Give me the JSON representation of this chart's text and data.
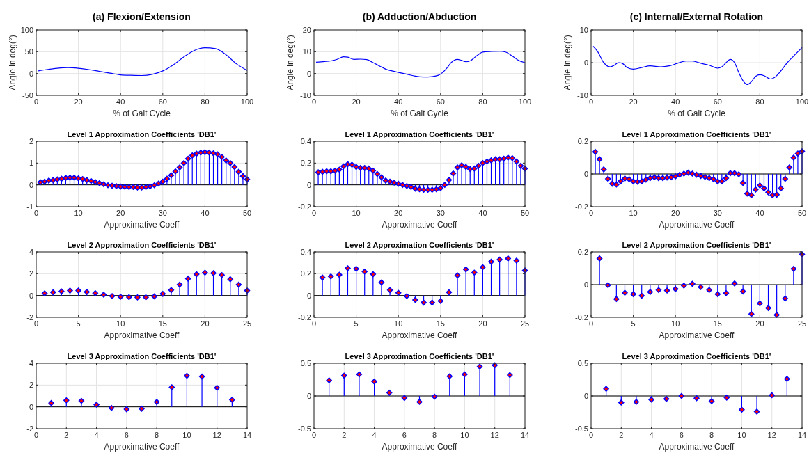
{
  "chart_data": [
    {
      "type": "line",
      "title": "(a) Flexion/Extension",
      "xlabel": "% of Gait Cycle",
      "ylabel": "Angle in deg(°)",
      "color": "#0000ff",
      "grid": true,
      "xlim": [
        0,
        100
      ],
      "ylim": [
        -50,
        100
      ],
      "xticks": [
        0,
        20,
        40,
        60,
        80,
        100
      ],
      "yticks": [
        -50,
        0,
        50,
        100
      ],
      "x": [
        1,
        5,
        10,
        15,
        20,
        25,
        30,
        35,
        40,
        45,
        50,
        55,
        60,
        65,
        70,
        75,
        80,
        85,
        90,
        95,
        100
      ],
      "values": [
        6,
        9,
        12,
        13.5,
        12,
        9,
        5,
        1,
        -3,
        -4,
        -4.5,
        -2,
        6,
        20,
        38,
        53,
        59,
        57,
        43,
        22,
        7
      ]
    },
    {
      "type": "line",
      "title": "(b) Adduction/Abduction",
      "xlabel": "% of Gait Cycle",
      "ylabel": "Angle in deg(°)",
      "color": "#0000ff",
      "grid": true,
      "xlim": [
        0,
        100
      ],
      "ylim": [
        -10,
        20
      ],
      "xticks": [
        0,
        20,
        40,
        60,
        80,
        100
      ],
      "yticks": [
        -10,
        0,
        10,
        20
      ],
      "x": [
        1,
        5,
        8,
        11,
        14,
        16,
        19,
        22,
        25,
        28,
        31,
        34,
        37,
        40,
        44,
        48,
        52,
        56,
        59,
        61,
        63,
        65,
        68,
        70,
        72,
        74,
        77,
        80,
        84,
        88,
        91,
        94,
        97,
        100
      ],
      "values": [
        5.2,
        5.5,
        5.8,
        6.5,
        7.7,
        7.5,
        6.5,
        6.6,
        6.4,
        5,
        3.5,
        2,
        1.2,
        0.5,
        -0.3,
        -1.2,
        -1.6,
        -1.4,
        -0.8,
        0.5,
        2.5,
        5,
        6.5,
        6,
        5.4,
        5.8,
        8,
        9.8,
        10.1,
        10.2,
        9.8,
        8,
        6,
        5
      ]
    },
    {
      "type": "line",
      "title": "(c) Internal/External Rotation",
      "xlabel": "% of Gait Cycle",
      "ylabel": "Angle in deg(°)",
      "color": "#0000ff",
      "grid": true,
      "xlim": [
        0,
        100
      ],
      "ylim": [
        -10,
        10
      ],
      "xticks": [
        0,
        20,
        40,
        60,
        80,
        100
      ],
      "yticks": [
        -10,
        0,
        10
      ],
      "x": [
        1,
        3,
        6,
        9,
        11,
        13,
        15,
        17,
        20,
        24,
        28,
        33,
        37,
        41,
        45,
        48,
        52,
        56,
        60,
        62,
        64,
        66,
        68,
        70,
        72,
        74,
        76,
        78,
        80,
        82,
        85,
        87,
        90,
        93,
        96,
        100
      ],
      "values": [
        5,
        3.5,
        0,
        -1.3,
        -0.8,
        0,
        -0.3,
        -1.5,
        -2,
        -1.5,
        -1,
        -1.3,
        -1,
        -0.2,
        0.5,
        0.5,
        -0.2,
        -0.8,
        -1.7,
        -1.3,
        0,
        1,
        0,
        -3,
        -5.5,
        -6.7,
        -5.8,
        -4.2,
        -3.7,
        -4,
        -5,
        -4.5,
        -2.5,
        0,
        2,
        4.6
      ]
    },
    {
      "type": "lollipop",
      "title": "Level 1 Approximation Coefficients 'DB1'",
      "xlabel": "Approximative Coeff",
      "color": "#0000ff",
      "marker": "diamond",
      "grid": true,
      "xlim": [
        0,
        50
      ],
      "ylim": [
        -1,
        2
      ],
      "xticks": [
        0,
        10,
        20,
        30,
        40,
        50
      ],
      "yticks": [
        -1,
        0,
        1,
        2
      ],
      "x": [
        1,
        2,
        3,
        4,
        5,
        6,
        7,
        8,
        9,
        10,
        11,
        12,
        13,
        14,
        15,
        16,
        17,
        18,
        19,
        20,
        21,
        22,
        23,
        24,
        25,
        26,
        27,
        28,
        29,
        30,
        31,
        32,
        33,
        34,
        35,
        36,
        37,
        38,
        39,
        40,
        41,
        42,
        43,
        44,
        45,
        46,
        47,
        48,
        49,
        50
      ],
      "values": [
        0.12,
        0.15,
        0.2,
        0.22,
        0.25,
        0.28,
        0.32,
        0.33,
        0.33,
        0.3,
        0.27,
        0.22,
        0.18,
        0.13,
        0.08,
        0.03,
        -0.02,
        -0.04,
        -0.06,
        -0.08,
        -0.09,
        -0.1,
        -0.1,
        -0.12,
        -0.12,
        -0.1,
        -0.07,
        -0.02,
        0.06,
        0.15,
        0.28,
        0.44,
        0.62,
        0.8,
        1.0,
        1.2,
        1.35,
        1.43,
        1.48,
        1.5,
        1.48,
        1.45,
        1.4,
        1.28,
        1.12,
        1.0,
        0.82,
        0.6,
        0.4,
        0.25
      ]
    },
    {
      "type": "lollipop",
      "title": "Level 1 Approximation Coefficients 'DB1'",
      "xlabel": "Approximative Coeff",
      "color": "#0000ff",
      "marker": "diamond",
      "grid": true,
      "xlim": [
        0,
        50
      ],
      "ylim": [
        -0.2,
        0.4
      ],
      "xticks": [
        0,
        10,
        20,
        30,
        40,
        50
      ],
      "yticks": [
        -0.2,
        0,
        0.2,
        0.4
      ],
      "x": [
        1,
        2,
        3,
        4,
        5,
        6,
        7,
        8,
        9,
        10,
        11,
        12,
        13,
        14,
        15,
        16,
        17,
        18,
        19,
        20,
        21,
        22,
        23,
        24,
        25,
        26,
        27,
        28,
        29,
        30,
        31,
        32,
        33,
        34,
        35,
        36,
        37,
        38,
        39,
        40,
        41,
        42,
        43,
        44,
        45,
        46,
        47,
        48,
        49,
        50
      ],
      "values": [
        0.115,
        0.12,
        0.125,
        0.125,
        0.13,
        0.14,
        0.17,
        0.19,
        0.185,
        0.165,
        0.155,
        0.155,
        0.15,
        0.13,
        0.1,
        0.07,
        0.04,
        0.03,
        0.02,
        0.01,
        0.0,
        -0.01,
        -0.02,
        -0.035,
        -0.04,
        -0.045,
        -0.045,
        -0.045,
        -0.04,
        -0.03,
        0.0,
        0.045,
        0.105,
        0.16,
        0.18,
        0.165,
        0.145,
        0.15,
        0.175,
        0.2,
        0.215,
        0.225,
        0.235,
        0.235,
        0.24,
        0.25,
        0.245,
        0.215,
        0.175,
        0.15
      ]
    },
    {
      "type": "lollipop",
      "title": "Level 1 Approximation Coefficients 'DB1'",
      "xlabel": "Approximative Coeff",
      "color": "#0000ff",
      "marker": "diamond",
      "grid": true,
      "xlim": [
        0,
        50
      ],
      "ylim": [
        -0.2,
        0.2
      ],
      "xticks": [
        0,
        10,
        20,
        30,
        40,
        50
      ],
      "yticks": [
        -0.2,
        0,
        0.2
      ],
      "x": [
        1,
        2,
        3,
        4,
        5,
        6,
        7,
        8,
        9,
        10,
        11,
        12,
        13,
        14,
        15,
        16,
        17,
        18,
        19,
        20,
        21,
        22,
        23,
        24,
        25,
        26,
        27,
        28,
        29,
        30,
        31,
        32,
        33,
        34,
        35,
        36,
        37,
        38,
        39,
        40,
        41,
        42,
        43,
        44,
        45,
        46,
        47,
        48,
        49,
        50
      ],
      "values": [
        0.135,
        0.09,
        0.028,
        -0.03,
        -0.06,
        -0.065,
        -0.045,
        -0.028,
        -0.032,
        -0.045,
        -0.048,
        -0.045,
        -0.035,
        -0.025,
        -0.02,
        -0.025,
        -0.025,
        -0.022,
        -0.02,
        -0.015,
        -0.005,
        0.002,
        0.008,
        0.002,
        -0.005,
        -0.012,
        -0.018,
        -0.025,
        -0.032,
        -0.045,
        -0.045,
        -0.025,
        0.005,
        0.005,
        -0.002,
        -0.055,
        -0.12,
        -0.13,
        -0.095,
        -0.07,
        -0.088,
        -0.112,
        -0.13,
        -0.127,
        -0.088,
        -0.03,
        0.04,
        0.1,
        0.125,
        0.138
      ]
    },
    {
      "type": "lollipop",
      "title": "Level 2 Approximation Coefficients 'DB1'",
      "xlabel": "Approximative Coeff",
      "color": "#0000ff",
      "marker": "diamond",
      "grid": true,
      "xlim": [
        0,
        25
      ],
      "ylim": [
        -2,
        4
      ],
      "xticks": [
        0,
        5,
        10,
        15,
        20,
        25
      ],
      "yticks": [
        -2,
        0,
        2,
        4
      ],
      "x": [
        1,
        2,
        3,
        4,
        5,
        6,
        7,
        8,
        9,
        10,
        11,
        12,
        13,
        14,
        15,
        16,
        17,
        18,
        19,
        20,
        21,
        22,
        23,
        24,
        25
      ],
      "values": [
        0.2,
        0.3,
        0.38,
        0.45,
        0.45,
        0.33,
        0.22,
        0.08,
        -0.05,
        -0.12,
        -0.15,
        -0.17,
        -0.16,
        -0.08,
        0.15,
        0.5,
        1.0,
        1.55,
        1.95,
        2.1,
        2.05,
        1.88,
        1.5,
        1.0,
        0.45
      ]
    },
    {
      "type": "lollipop",
      "title": "Level 2 Approximation Coefficients 'DB1'",
      "xlabel": "Approximative Coeff",
      "color": "#0000ff",
      "marker": "diamond",
      "grid": true,
      "xlim": [
        0,
        25
      ],
      "ylim": [
        -0.2,
        0.4
      ],
      "xticks": [
        0,
        5,
        10,
        15,
        20,
        25
      ],
      "yticks": [
        -0.2,
        0,
        0.2,
        0.4
      ],
      "x": [
        1,
        2,
        3,
        4,
        5,
        6,
        7,
        8,
        9,
        10,
        11,
        12,
        13,
        14,
        15,
        16,
        17,
        18,
        19,
        20,
        21,
        22,
        23,
        24,
        25
      ],
      "values": [
        0.165,
        0.175,
        0.19,
        0.25,
        0.245,
        0.22,
        0.195,
        0.12,
        0.05,
        0.025,
        -0.005,
        -0.04,
        -0.065,
        -0.065,
        -0.05,
        0.03,
        0.185,
        0.24,
        0.21,
        0.26,
        0.31,
        0.33,
        0.34,
        0.32,
        0.23
      ]
    },
    {
      "type": "lollipop",
      "title": "Level 2 Approximation Coefficients 'DB1'",
      "xlabel": "Approximative Coeff",
      "color": "#0000ff",
      "marker": "diamond",
      "grid": true,
      "xlim": [
        0,
        25
      ],
      "ylim": [
        -0.2,
        0.2
      ],
      "xticks": [
        0,
        5,
        10,
        15,
        20,
        25
      ],
      "yticks": [
        -0.2,
        0,
        0.2
      ],
      "x": [
        1,
        2,
        3,
        4,
        5,
        6,
        7,
        8,
        9,
        10,
        11,
        12,
        13,
        14,
        15,
        16,
        17,
        18,
        19,
        20,
        21,
        22,
        23,
        24,
        25
      ],
      "values": [
        0.16,
        -0.003,
        -0.088,
        -0.05,
        -0.058,
        -0.068,
        -0.045,
        -0.033,
        -0.036,
        -0.027,
        -0.006,
        0.005,
        -0.015,
        -0.033,
        -0.058,
        -0.052,
        0.007,
        -0.042,
        -0.18,
        -0.115,
        -0.143,
        -0.185,
        -0.085,
        0.097,
        0.185
      ]
    },
    {
      "type": "lollipop",
      "title": "Level 3 Approximation Coefficients 'DB1'",
      "xlabel": "Approximative Coeff",
      "color": "#0000ff",
      "marker": "diamond",
      "grid": true,
      "xlim": [
        0,
        14
      ],
      "ylim": [
        -2,
        4
      ],
      "xticks": [
        0,
        2,
        4,
        6,
        8,
        10,
        12,
        14
      ],
      "yticks": [
        -2,
        0,
        2,
        4
      ],
      "x": [
        1,
        2,
        3,
        4,
        5,
        6,
        7,
        8,
        9,
        10,
        11,
        12,
        13
      ],
      "values": [
        0.35,
        0.6,
        0.55,
        0.2,
        -0.1,
        -0.22,
        -0.17,
        0.45,
        1.8,
        2.85,
        2.78,
        1.75,
        0.65
      ]
    },
    {
      "type": "lollipop",
      "title": "Level 3 Approximation Coefficients 'DB1'",
      "xlabel": "Approximative Coeff",
      "color": "#0000ff",
      "marker": "diamond",
      "grid": true,
      "xlim": [
        0,
        14
      ],
      "ylim": [
        -0.5,
        0.5
      ],
      "xticks": [
        0,
        2,
        4,
        6,
        8,
        10,
        12,
        14
      ],
      "yticks": [
        -0.5,
        0,
        0.5
      ],
      "x": [
        1,
        2,
        3,
        4,
        5,
        6,
        7,
        8,
        9,
        10,
        11,
        12,
        13
      ],
      "values": [
        0.24,
        0.31,
        0.33,
        0.22,
        0.05,
        -0.03,
        -0.09,
        -0.01,
        0.3,
        0.33,
        0.45,
        0.47,
        0.32
      ]
    },
    {
      "type": "lollipop",
      "title": "Level 3 Approximation Coefficients 'DB1'",
      "xlabel": "Approximative Coeff",
      "color": "#0000ff",
      "marker": "diamond",
      "grid": true,
      "xlim": [
        0,
        14
      ],
      "ylim": [
        -0.5,
        0.5
      ],
      "xticks": [
        0,
        2,
        4,
        6,
        8,
        10,
        12,
        14
      ],
      "yticks": [
        -0.5,
        0,
        0.5
      ],
      "x": [
        1,
        2,
        3,
        4,
        5,
        6,
        7,
        8,
        9,
        10,
        11,
        12,
        13
      ],
      "values": [
        0.11,
        -0.1,
        -0.09,
        -0.055,
        -0.045,
        0.0,
        -0.035,
        -0.08,
        -0.025,
        -0.21,
        -0.24,
        0.01,
        0.26
      ]
    }
  ]
}
